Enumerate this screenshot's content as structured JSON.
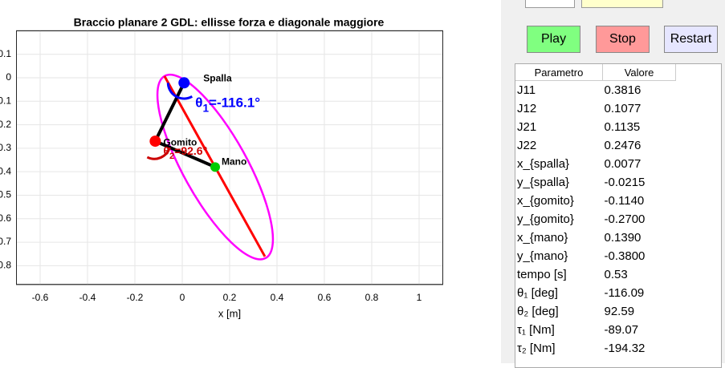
{
  "plot": {
    "title": "Braccio planare 2 GDL: ellisse forza e diagonale maggiore",
    "xlabel": "x [m]",
    "xlim": [
      -0.7,
      1.1
    ],
    "ylim": [
      -0.88,
      0.2
    ],
    "xticks": [
      -0.6,
      -0.4,
      -0.2,
      0,
      0.2,
      0.4,
      0.6,
      0.8,
      1
    ],
    "yticks": [
      0.1,
      0,
      -0.1,
      -0.2,
      -0.3,
      -0.4,
      -0.5,
      -0.6,
      -0.7,
      -0.8
    ],
    "grid": true,
    "shoulder": {
      "label": "Spalla",
      "x": 0.0077,
      "y": -0.0215,
      "color": "#0000ff"
    },
    "elbow": {
      "label": "Gomito",
      "x": -0.114,
      "y": -0.27,
      "color": "#ff0000"
    },
    "hand": {
      "label": "Mano",
      "x": 0.139,
      "y": -0.38,
      "color": "#00cc00"
    },
    "ellipse": {
      "color": "#ff00ff",
      "cx": 0.139,
      "cy": -0.38,
      "a": 0.44,
      "b": 0.135,
      "angle_deg": -61
    },
    "major_axis": {
      "color": "#ff0000",
      "x": [
        -0.075,
        0.349
      ],
      "y": [
        0.007,
        -0.761
      ]
    },
    "theta1": {
      "symbol": "θ",
      "sub": "1",
      "text": "=-116.1°",
      "color": "#0000ff"
    },
    "theta2": {
      "symbol": "θ",
      "sub": "2",
      "text": "=92.6°",
      "color": "#cc0000"
    }
  },
  "buttons": [
    "Play",
    "Stop",
    "Restart"
  ],
  "table": {
    "columns": [
      "Parametro",
      "Valore"
    ],
    "rows": [
      [
        "J11",
        "0.3816"
      ],
      [
        "J12",
        "0.1077"
      ],
      [
        "J21",
        "0.1135"
      ],
      [
        "J22",
        "0.2476"
      ],
      [
        "x_{spalla}",
        "0.0077"
      ],
      [
        "y_{spalla}",
        "-0.0215"
      ],
      [
        "x_{gomito}",
        "-0.1140"
      ],
      [
        "y_{gomito}",
        "-0.2700"
      ],
      [
        "x_{mano}",
        "0.1390"
      ],
      [
        "y_{mano}",
        "-0.3800"
      ],
      [
        "tempo [s]",
        "0.53"
      ],
      [
        "θ₁ [deg]",
        "-116.09"
      ],
      [
        "θ₂ [deg]",
        "92.59"
      ],
      [
        "τ₁ [Nm]",
        "-89.07"
      ],
      [
        "τ₂ [Nm]",
        "-194.32"
      ]
    ]
  }
}
